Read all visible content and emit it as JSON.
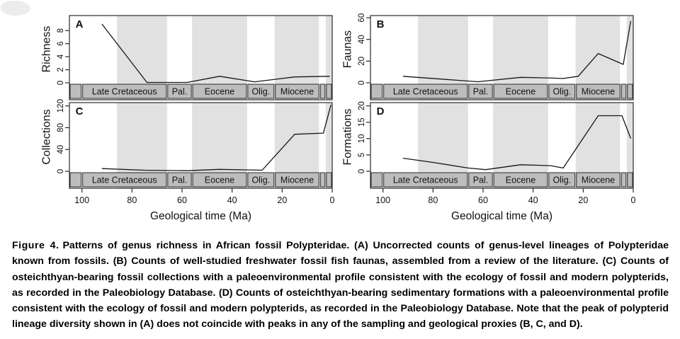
{
  "figure": {
    "xlabel": "Geological time (Ma)",
    "xticks": [
      100,
      80,
      60,
      40,
      20,
      0
    ],
    "xlim": [
      105,
      0
    ],
    "band_color": "#e1e1e1",
    "line_color": "#161616",
    "frame_color": "#2a2a2a",
    "timescale_bar": {
      "fill": "#bdbdbd",
      "border": "#2a2a2a",
      "epochs": [
        {
          "label": "",
          "from": 105,
          "to": 100
        },
        {
          "label": "Late Cretaceous",
          "from": 100,
          "to": 66
        },
        {
          "label": "Pal.",
          "from": 66,
          "to": 56
        },
        {
          "label": "Eocene",
          "from": 56,
          "to": 34
        },
        {
          "label": "Olig.",
          "from": 34,
          "to": 23
        },
        {
          "label": "Miocene",
          "from": 23,
          "to": 5
        },
        {
          "label": "",
          "from": 5,
          "to": 2.6
        },
        {
          "label": "",
          "from": 2.6,
          "to": 0
        }
      ]
    },
    "shading_bands_ma": [
      [
        86,
        66
      ],
      [
        56,
        34
      ],
      [
        23,
        5.3
      ],
      [
        2.6,
        0
      ]
    ]
  },
  "chart_data": [
    {
      "panel": "A",
      "type": "line",
      "ylabel": "Richness",
      "yticks": [
        0,
        2,
        4,
        6,
        8
      ],
      "ylim": [
        0,
        10.3
      ],
      "x": [
        92,
        74,
        58,
        45,
        31,
        15,
        1
      ],
      "y": [
        9,
        0.05,
        0.05,
        1,
        0.15,
        0.9,
        1
      ]
    },
    {
      "panel": "B",
      "type": "line",
      "ylabel": "Faunas",
      "yticks": [
        0,
        20,
        40,
        60
      ],
      "ylim": [
        0,
        62
      ],
      "x": [
        92,
        62,
        45,
        34,
        28,
        22,
        14,
        4,
        1
      ],
      "y": [
        6,
        1,
        5,
        4.5,
        4,
        6,
        27,
        17,
        57
      ]
    },
    {
      "panel": "C",
      "type": "line",
      "ylabel": "Collections",
      "yticks": [
        0,
        40,
        80,
        120
      ],
      "ylim": [
        0,
        126
      ],
      "x": [
        92,
        75,
        58,
        45,
        33,
        28,
        15,
        3.5,
        0.5
      ],
      "y": [
        5,
        2,
        1,
        3.5,
        2.5,
        2,
        68,
        70,
        122
      ]
    },
    {
      "panel": "D",
      "type": "line",
      "ylabel": "Formations",
      "yticks": [
        0,
        5,
        10,
        15,
        20
      ],
      "ylim": [
        0,
        21
      ],
      "x": [
        92,
        80,
        66,
        59,
        45,
        33,
        28,
        14,
        4.5,
        1
      ],
      "y": [
        4,
        2.7,
        1,
        0.5,
        2,
        1.7,
        1,
        17,
        17,
        10
      ]
    }
  ],
  "caption": {
    "label": "Figure 4.",
    "text": "Patterns of genus richness in African fossil Polypteridae. (A) Uncorrected counts of genus-level lineages of Polypteridae known from fossils. (B) Counts of well-studied freshwater fossil fish faunas, assembled from a review of the literature. (C) Counts of osteichthyan-bearing fossil collections with a paleoenvironmental profile consistent with the ecology of fossil and modern polypterids, as recorded in the Paleobiology Database. (D) Counts of osteichthyan-bearing sedimentary formations with a paleoenvironmental profile consistent with the ecology of fossil and modern polypterids, as recorded in the Paleobiology Database. Note that the peak of polypterid lineage diversity shown in (A) does not coincide with peaks in any of the sampling and geological proxies (B, C, and D)."
  }
}
